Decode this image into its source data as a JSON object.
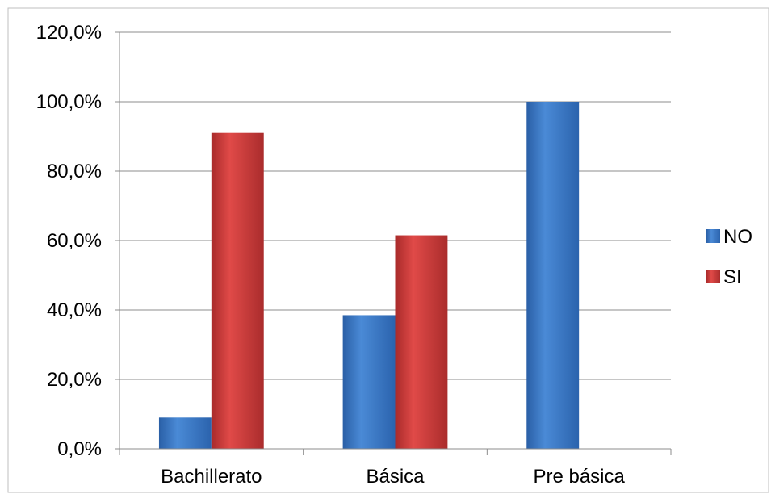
{
  "chart_data": {
    "type": "bar",
    "categories": [
      "Bachillerato",
      "Básica",
      "Pre básica"
    ],
    "series": [
      {
        "name": "NO",
        "values": [
          9.0,
          38.5,
          100.0
        ],
        "color": "#3b78c7"
      },
      {
        "name": "SI",
        "values": [
          91.0,
          61.5,
          0.0
        ],
        "color": "#c63a3a"
      }
    ],
    "ylim": [
      0,
      120
    ],
    "yticks": [
      0,
      20,
      40,
      60,
      80,
      100,
      120
    ],
    "ytick_labels": [
      "0,0%",
      "20,0%",
      "40,0%",
      "60,0%",
      "80,0%",
      "100,0%",
      "120,0%"
    ],
    "grid": true,
    "legend_position": "right"
  }
}
